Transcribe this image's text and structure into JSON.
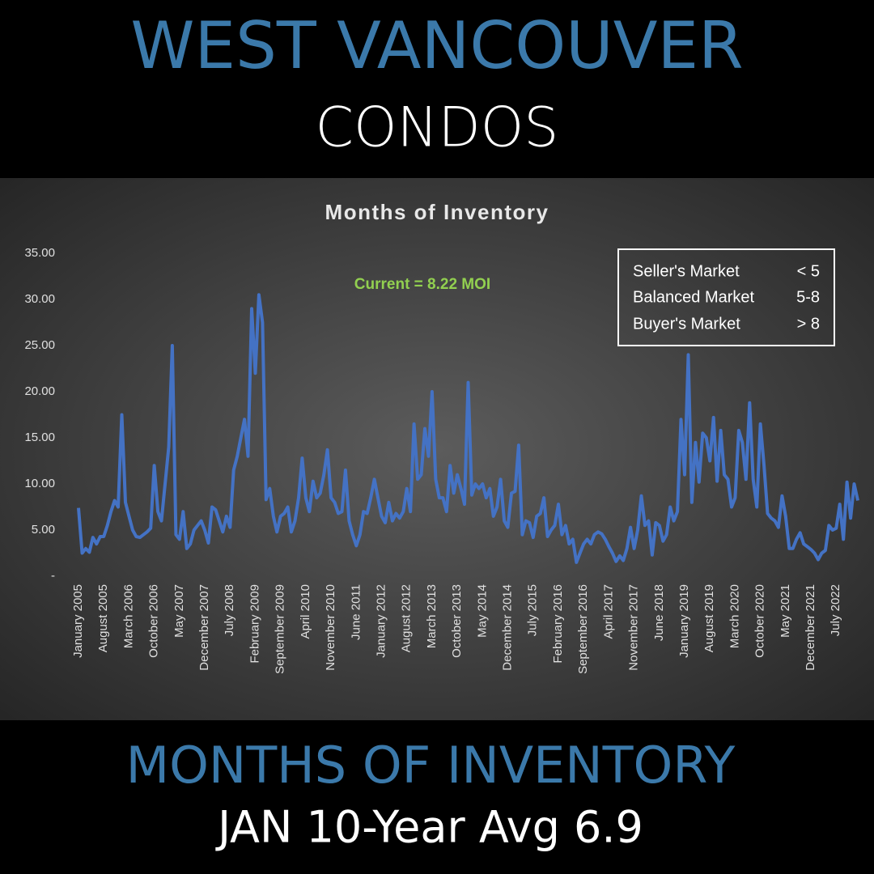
{
  "header": {
    "title": "WEST VANCOUVER",
    "subtitle": "CONDOS"
  },
  "chart_data": {
    "type": "line",
    "title": "Months of Inventory",
    "annotation": "Current = 8.22 MOI",
    "annotation_color": "#92d050",
    "market_key": [
      {
        "label": "Seller's Market",
        "range": "< 5"
      },
      {
        "label": "Balanced Market",
        "range": "5-8"
      },
      {
        "label": "Buyer's Market",
        "range": "> 8"
      }
    ],
    "categories": [
      "January 2005",
      null,
      null,
      null,
      null,
      null,
      null,
      "August 2005",
      null,
      null,
      null,
      null,
      null,
      null,
      "March 2006",
      null,
      null,
      null,
      null,
      null,
      null,
      "October 2006",
      null,
      null,
      null,
      null,
      null,
      null,
      "May 2007",
      null,
      null,
      null,
      null,
      null,
      null,
      "December 2007",
      null,
      null,
      null,
      null,
      null,
      null,
      "July 2008",
      null,
      null,
      null,
      null,
      null,
      null,
      "February 2009",
      null,
      null,
      null,
      null,
      null,
      null,
      "September 2009",
      null,
      null,
      null,
      null,
      null,
      null,
      "April 2010",
      null,
      null,
      null,
      null,
      null,
      null,
      "November 2010",
      null,
      null,
      null,
      null,
      null,
      null,
      "June 2011",
      null,
      null,
      null,
      null,
      null,
      null,
      "January 2012",
      null,
      null,
      null,
      null,
      null,
      null,
      "August 2012",
      null,
      null,
      null,
      null,
      null,
      null,
      "March 2013",
      null,
      null,
      null,
      null,
      null,
      null,
      "October 2013",
      null,
      null,
      null,
      null,
      null,
      null,
      "May 2014",
      null,
      null,
      null,
      null,
      null,
      null,
      "December 2014",
      null,
      null,
      null,
      null,
      null,
      null,
      "July 2015",
      null,
      null,
      null,
      null,
      null,
      null,
      "February 2016",
      null,
      null,
      null,
      null,
      null,
      null,
      "September 2016",
      null,
      null,
      null,
      null,
      null,
      null,
      "April 2017",
      null,
      null,
      null,
      null,
      null,
      null,
      "November 2017",
      null,
      null,
      null,
      null,
      null,
      null,
      "June 2018",
      null,
      null,
      null,
      null,
      null,
      null,
      "January 2019",
      null,
      null,
      null,
      null,
      null,
      null,
      "August 2019",
      null,
      null,
      null,
      null,
      null,
      null,
      "March 2020",
      null,
      null,
      null,
      null,
      null,
      null,
      "October 2020",
      null,
      null,
      null,
      null,
      null,
      null,
      "May 2021",
      null,
      null,
      null,
      null,
      null,
      null,
      "December 2021",
      null,
      null,
      null,
      null,
      null,
      null,
      "July 2022",
      null,
      null,
      null,
      null,
      null,
      null
    ],
    "values": [
      7.4,
      2.5,
      3.0,
      2.6,
      4.2,
      3.5,
      4.3,
      4.3,
      5.5,
      7.0,
      8.2,
      7.5,
      17.5,
      8.0,
      6.5,
      5.0,
      4.3,
      4.2,
      4.5,
      4.8,
      5.2,
      12.0,
      7.0,
      6.0,
      10.0,
      14.0,
      25.0,
      4.5,
      4.0,
      7.0,
      3.0,
      3.5,
      5.0,
      5.5,
      6.0,
      5.0,
      3.6,
      7.5,
      7.2,
      6.0,
      4.8,
      6.5,
      5.3,
      11.5,
      13.0,
      15.0,
      17.0,
      13.0,
      29.0,
      22.0,
      30.5,
      27.5,
      8.3,
      9.5,
      6.5,
      4.8,
      6.5,
      6.8,
      7.5,
      4.8,
      6.0,
      8.5,
      12.8,
      8.5,
      7.0,
      10.3,
      8.5,
      9.0,
      11.0,
      13.7,
      8.5,
      8.0,
      6.8,
      7.0,
      11.5,
      6.0,
      4.5,
      3.3,
      4.5,
      7.0,
      6.8,
      8.5,
      10.5,
      8.5,
      6.5,
      5.8,
      8.0,
      6.0,
      6.8,
      6.3,
      7.0,
      9.5,
      7.0,
      16.5,
      10.5,
      11.0,
      16.0,
      13.0,
      20.0,
      10.5,
      8.5,
      8.5,
      7.0,
      12.0,
      9.0,
      11.0,
      9.5,
      7.8,
      21.0,
      8.8,
      10.0,
      9.5,
      10.0,
      8.5,
      9.5,
      6.5,
      7.5,
      10.5,
      6.0,
      5.3,
      9.0,
      9.2,
      14.2,
      4.5,
      6.0,
      5.8,
      4.2,
      6.5,
      6.8,
      8.5,
      4.3,
      5.0,
      5.5,
      7.8,
      4.5,
      5.5,
      3.5,
      4.0,
      1.5,
      2.5,
      3.5,
      4.0,
      3.5,
      4.5,
      4.8,
      4.6,
      4.0,
      3.2,
      2.5,
      1.6,
      2.2,
      1.7,
      3.0,
      5.3,
      3.0,
      5.0,
      8.7,
      5.5,
      6.0,
      2.3,
      5.8,
      5.5,
      3.8,
      4.5,
      7.5,
      6.0,
      7.0,
      17.0,
      11.0,
      24.0,
      8.0,
      14.5,
      10.2,
      15.5,
      15.0,
      12.5,
      17.2,
      10.3,
      15.8,
      11.0,
      10.5,
      7.5,
      8.5,
      15.8,
      14.5,
      10.5,
      18.8,
      10.5,
      7.5,
      16.5,
      12.0,
      6.8,
      6.3,
      6.0,
      5.3,
      8.7,
      6.5,
      3.0,
      3.0,
      4.0,
      4.7,
      3.5,
      3.2,
      2.9,
      2.5,
      1.8,
      2.5,
      2.8,
      5.5,
      5.0,
      5.2,
      7.8,
      4.0,
      10.2,
      6.3,
      10.0,
      8.2
    ],
    "color": "#4472c4",
    "ylim": [
      0,
      35
    ],
    "yticks": [
      {
        "value": 0,
        "label": "-"
      },
      {
        "value": 5,
        "label": "5.00"
      },
      {
        "value": 10,
        "label": "10.00"
      },
      {
        "value": 15,
        "label": "15.00"
      },
      {
        "value": 20,
        "label": "20.00"
      },
      {
        "value": 25,
        "label": "25.00"
      },
      {
        "value": 30,
        "label": "30.00"
      },
      {
        "value": 35,
        "label": "35.00"
      }
    ]
  },
  "footer": {
    "title": "MONTHS OF INVENTORY",
    "subtitle": "JAN 10-Year Avg 6.9"
  }
}
